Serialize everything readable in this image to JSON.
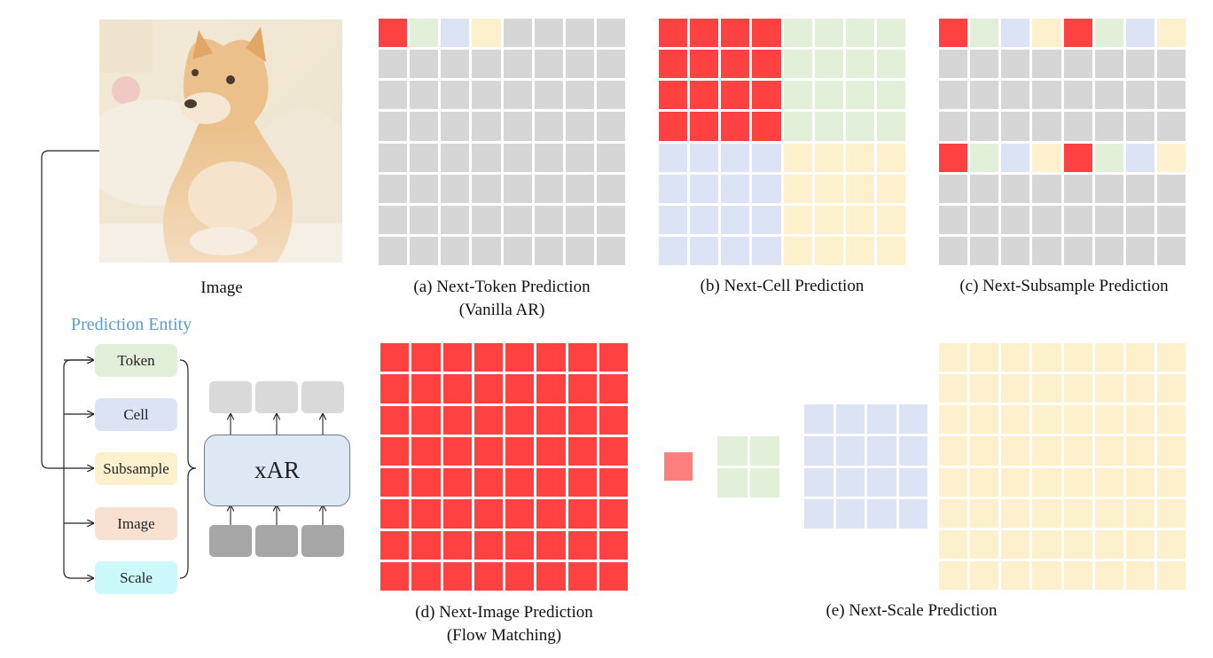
{
  "image_label": "Image",
  "captions": {
    "a_line1": "(a) Next-Token Prediction",
    "a_line2": "(Vanilla AR)",
    "b": "(b) Next-Cell Prediction",
    "c": "(c) Next-Subsample Prediction",
    "d_line1": "(d) Next-Image Prediction",
    "d_line2": "(Flow Matching)",
    "e": "(e) Next-Scale Prediction"
  },
  "prediction_entity_title": "Prediction Entity",
  "entities": [
    {
      "label": "Token",
      "color": "#e2efd9"
    },
    {
      "label": "Cell",
      "color": "#dce3f5"
    },
    {
      "label": "Subsample",
      "color": "#fdf1cd"
    },
    {
      "label": "Image",
      "color": "#f9e1d2"
    },
    {
      "label": "Scale",
      "color": "#ccf9fb"
    }
  ],
  "model_label": "xAR",
  "colors": {
    "red": "#ff4141",
    "green": "#e2efd9",
    "blue": "#dce3f5",
    "yellow": "#fdf1cd",
    "gray": "#d6d6d6",
    "dark_gray": "#a6a6a6",
    "light_gray": "#d9d9d9",
    "pink": "#ff7f7f",
    "title_blue": "#5b9bd5"
  }
}
